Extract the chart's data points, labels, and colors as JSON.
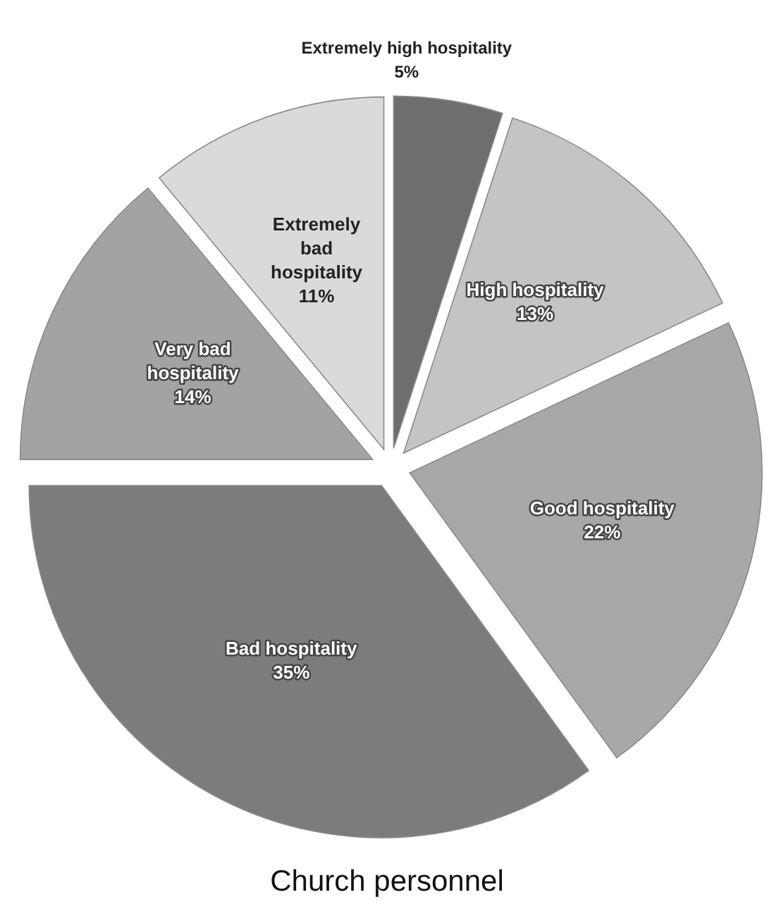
{
  "chart_data": {
    "type": "pie",
    "title": "Church personnel",
    "categories": [
      "Extremely high hospitality",
      "High hospitality",
      "Good hospitality",
      "Bad hospitality",
      "Very bad hospitality",
      "Extremely bad hospitality"
    ],
    "values": [
      5,
      13,
      22,
      35,
      14,
      11
    ],
    "colors": [
      "#6e6e6e",
      "#c4c4c4",
      "#a8a8a8",
      "#7c7c7c",
      "#a3a3a3",
      "#dadada"
    ],
    "value_labels": [
      "5%",
      "13%",
      "22%",
      "35%",
      "14%",
      "11%"
    ]
  }
}
